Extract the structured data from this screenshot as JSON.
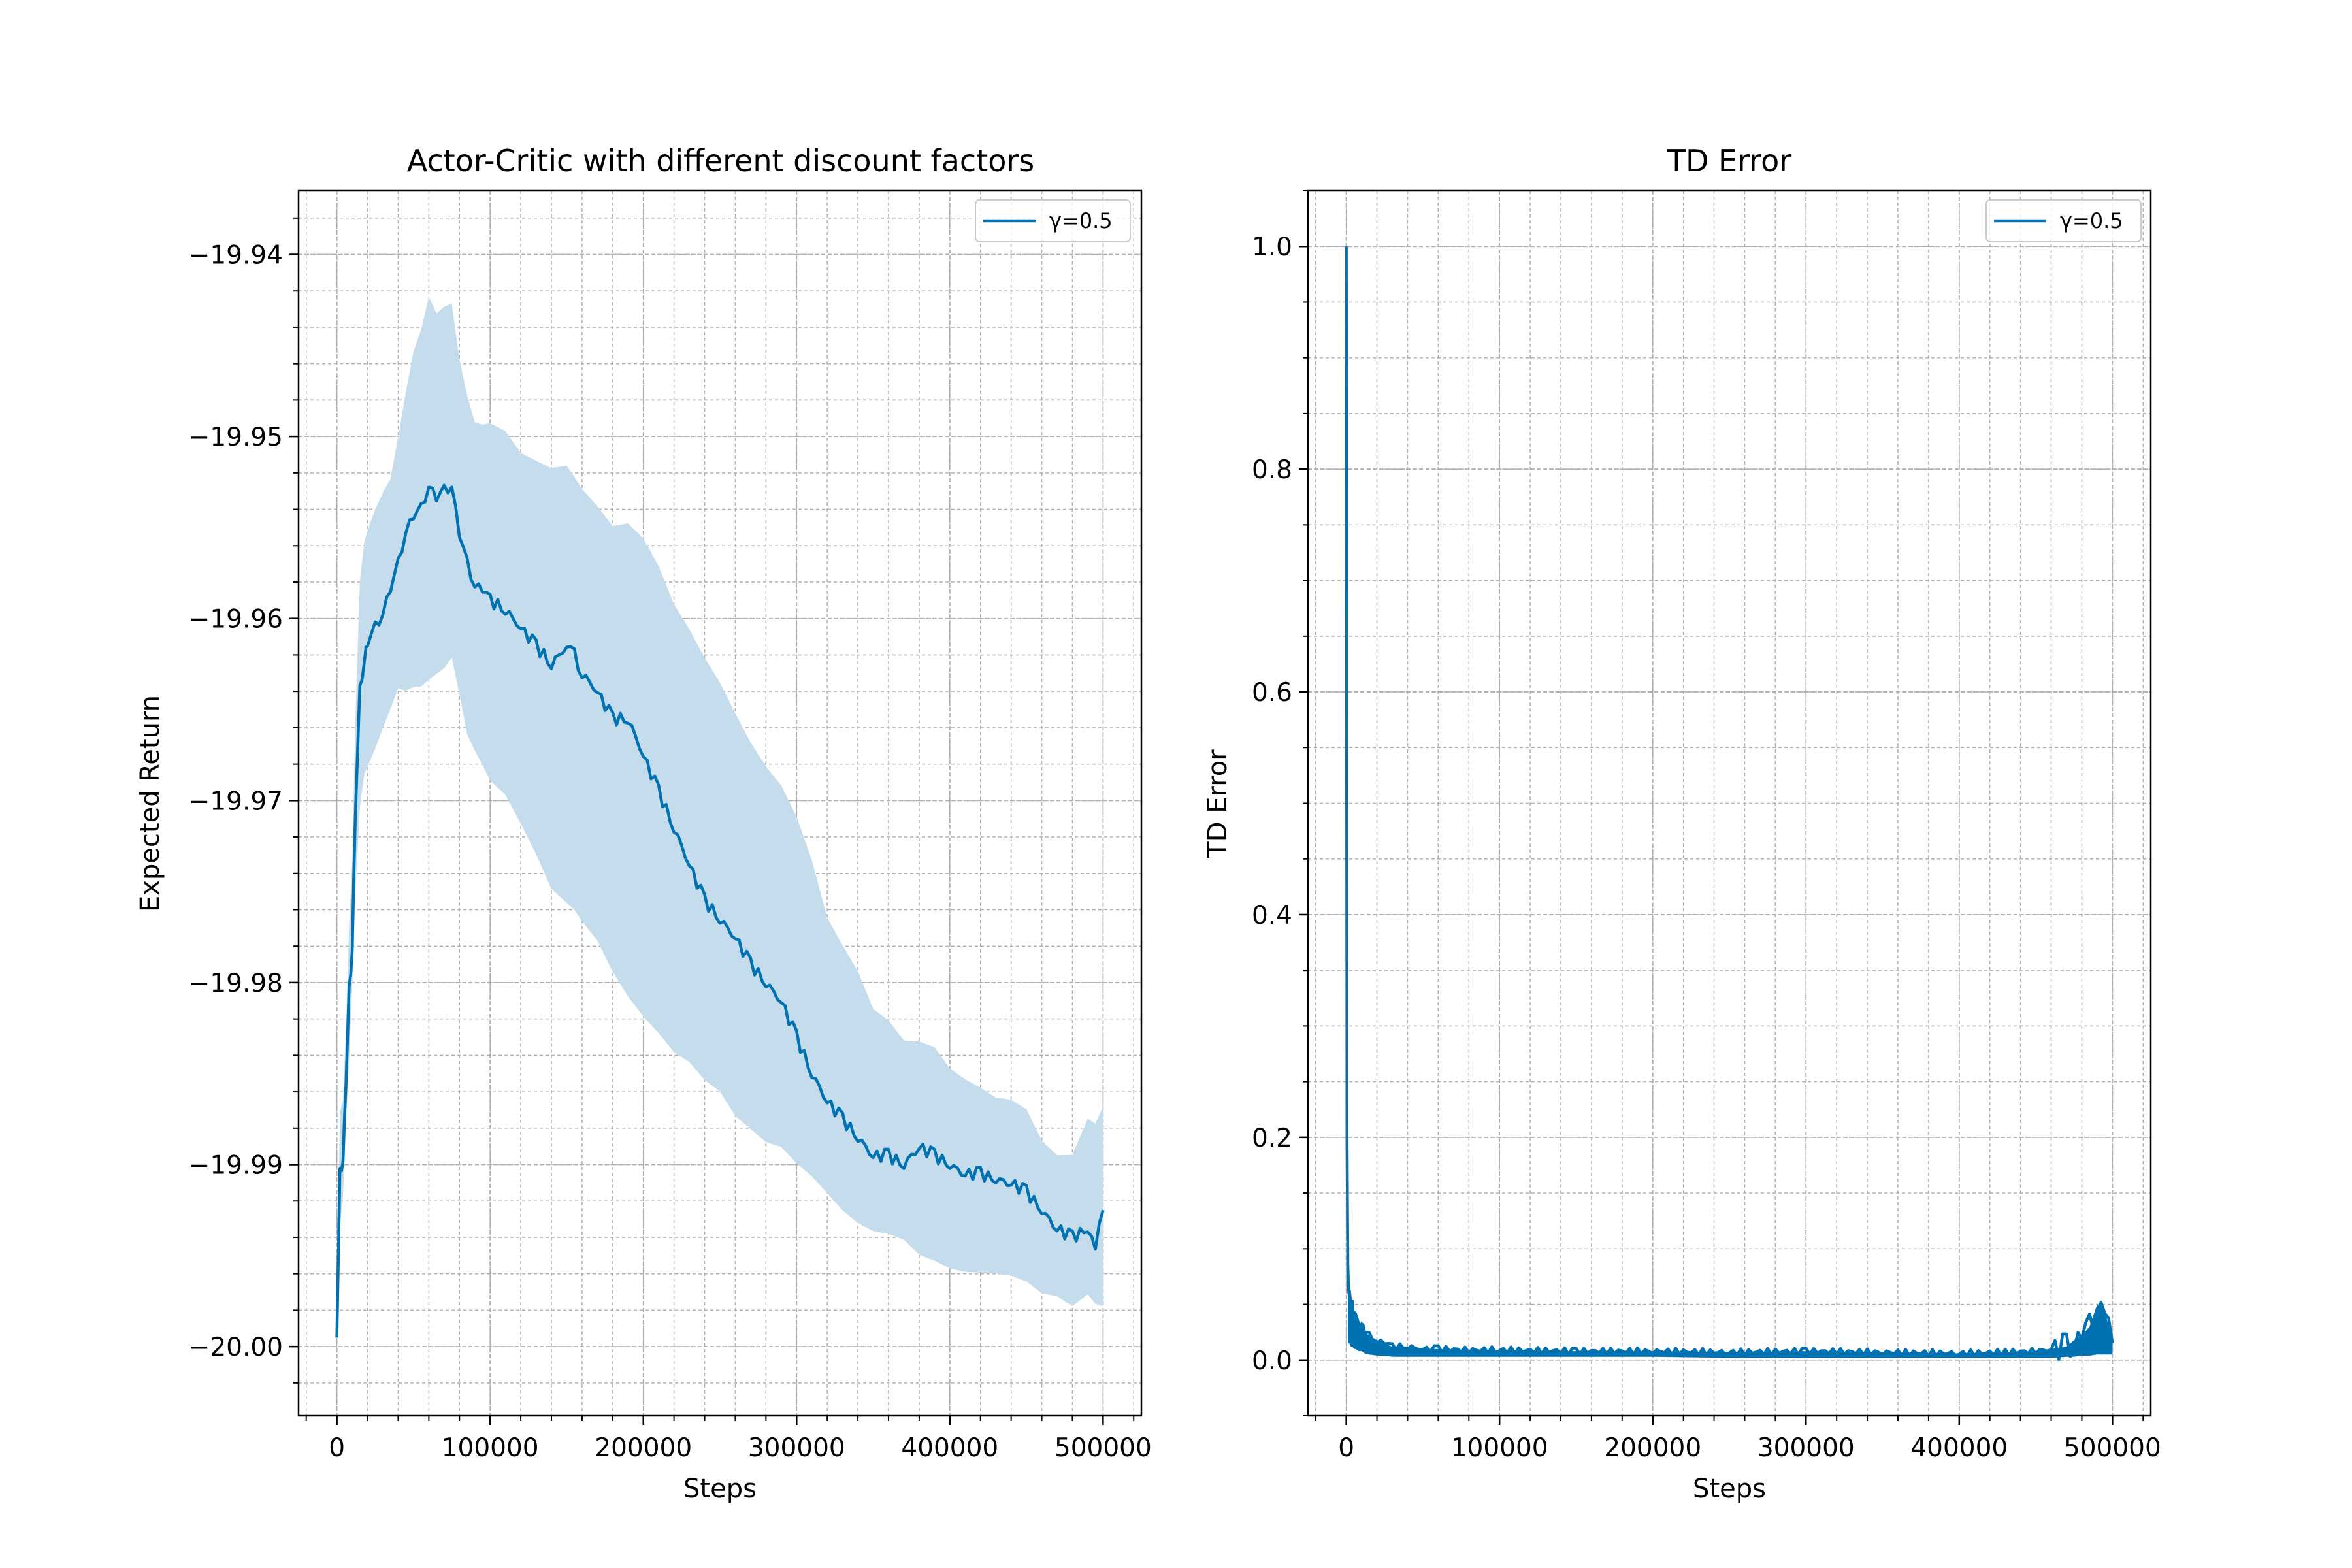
{
  "chart_data": [
    {
      "type": "line",
      "title": "Actor-Critic with different discount factors",
      "xlabel": "Steps",
      "ylabel": "Expected Return",
      "xlim": [
        -25000,
        525000
      ],
      "ylim": [
        -20.0038,
        -19.9365
      ],
      "xticks": [
        0,
        100000,
        200000,
        300000,
        400000,
        500000
      ],
      "xtick_labels": [
        "0",
        "100000",
        "200000",
        "300000",
        "400000",
        "500000"
      ],
      "yticks": [
        -20.0,
        -19.99,
        -19.98,
        -19.97,
        -19.96,
        -19.95,
        -19.94
      ],
      "ytick_labels": [
        "−20.00",
        "−19.99",
        "−19.98",
        "−19.97",
        "−19.96",
        "−19.95",
        "−19.94"
      ],
      "grid": true,
      "legend_position": "top-right",
      "series": [
        {
          "name": "γ=0.5",
          "color": "#0072b2",
          "band_color": "#c5dcec",
          "x": [
            0,
            2000,
            4000,
            6000,
            8000,
            10000,
            12000,
            15000,
            18000,
            20000,
            25000,
            30000,
            35000,
            40000,
            45000,
            50000,
            55000,
            60000,
            65000,
            70000,
            75000,
            80000,
            85000,
            90000,
            95000,
            100000,
            110000,
            120000,
            130000,
            140000,
            150000,
            155000,
            160000,
            170000,
            180000,
            190000,
            200000,
            210000,
            220000,
            230000,
            240000,
            250000,
            260000,
            270000,
            280000,
            290000,
            300000,
            310000,
            320000,
            330000,
            340000,
            350000,
            360000,
            370000,
            380000,
            390000,
            400000,
            410000,
            420000,
            430000,
            440000,
            450000,
            460000,
            470000,
            480000,
            490000,
            495000,
            500000
          ],
          "y": [
            -19.9995,
            -19.9905,
            -19.9895,
            -19.9855,
            -19.9805,
            -19.978,
            -19.971,
            -19.964,
            -19.962,
            -19.9615,
            -19.9605,
            -19.9595,
            -19.9585,
            -19.957,
            -19.955,
            -19.9545,
            -19.954,
            -19.9525,
            -19.9535,
            -19.953,
            -19.9525,
            -19.9555,
            -19.957,
            -19.958,
            -19.9585,
            -19.959,
            -19.9595,
            -19.9605,
            -19.9615,
            -19.9625,
            -19.9615,
            -19.962,
            -19.963,
            -19.964,
            -19.9655,
            -19.9655,
            -19.9675,
            -19.9695,
            -19.9715,
            -19.9735,
            -19.9755,
            -19.9765,
            -19.9775,
            -19.979,
            -19.98,
            -19.981,
            -19.983,
            -19.985,
            -19.9865,
            -19.9875,
            -19.9885,
            -19.9895,
            -19.9895,
            -19.99,
            -19.989,
            -19.9895,
            -19.99,
            -19.9905,
            -19.9905,
            -19.9908,
            -19.991,
            -19.9915,
            -19.9925,
            -19.9935,
            -19.994,
            -19.9935,
            -19.9945,
            -19.9925
          ],
          "lower": [
            -20.0,
            -19.9935,
            -19.9915,
            -19.9875,
            -19.984,
            -19.9805,
            -19.9755,
            -19.9705,
            -19.9685,
            -19.968,
            -19.967,
            -19.966,
            -19.965,
            -19.964,
            -19.964,
            -19.9635,
            -19.9635,
            -19.963,
            -19.963,
            -19.963,
            -19.9625,
            -19.9645,
            -19.966,
            -19.967,
            -19.968,
            -19.969,
            -19.97,
            -19.9715,
            -19.973,
            -19.9745,
            -19.9755,
            -19.976,
            -19.977,
            -19.978,
            -19.9795,
            -19.9805,
            -19.9815,
            -19.9825,
            -19.9835,
            -19.9845,
            -19.9855,
            -19.9862,
            -19.987,
            -19.9878,
            -19.9885,
            -19.9892,
            -19.99,
            -19.9908,
            -19.9915,
            -19.9922,
            -19.993,
            -19.9935,
            -19.994,
            -19.9945,
            -19.995,
            -19.9952,
            -19.9955,
            -19.9958,
            -19.996,
            -19.9962,
            -19.9965,
            -19.9968,
            -19.997,
            -19.9972,
            -19.9975,
            -19.9975,
            -19.9978,
            -19.998
          ],
          "upper": [
            -19.9985,
            -19.9875,
            -19.9865,
            -19.9825,
            -19.977,
            -19.9735,
            -19.966,
            -19.958,
            -19.9555,
            -19.955,
            -19.954,
            -19.953,
            -19.952,
            -19.95,
            -19.9475,
            -19.9455,
            -19.9445,
            -19.9425,
            -19.9435,
            -19.943,
            -19.943,
            -19.946,
            -19.948,
            -19.949,
            -19.949,
            -19.949,
            -19.9495,
            -19.9505,
            -19.951,
            -19.9515,
            -19.952,
            -19.9525,
            -19.953,
            -19.954,
            -19.955,
            -19.955,
            -19.956,
            -19.9575,
            -19.959,
            -19.9605,
            -19.962,
            -19.9635,
            -19.965,
            -19.9665,
            -19.968,
            -19.9695,
            -19.971,
            -19.9735,
            -19.9765,
            -19.978,
            -19.9795,
            -19.9815,
            -19.982,
            -19.983,
            -19.983,
            -19.9835,
            -19.9845,
            -19.985,
            -19.9855,
            -19.986,
            -19.9865,
            -19.987,
            -19.989,
            -19.9895,
            -19.9895,
            -19.9875,
            -19.988,
            -19.9865
          ]
        }
      ]
    },
    {
      "type": "line",
      "title": "TD Error",
      "xlabel": "Steps",
      "ylabel": "TD Error",
      "xlim": [
        -25000,
        525000
      ],
      "ylim": [
        -0.05,
        1.05
      ],
      "xticks": [
        0,
        100000,
        200000,
        300000,
        400000,
        500000
      ],
      "xtick_labels": [
        "0",
        "100000",
        "200000",
        "300000",
        "400000",
        "500000"
      ],
      "yticks": [
        0.0,
        0.2,
        0.4,
        0.6,
        0.8,
        1.0
      ],
      "ytick_labels": [
        "0.0",
        "0.2",
        "0.4",
        "0.6",
        "0.8",
        "1.0"
      ],
      "grid": true,
      "legend_position": "top-right",
      "series": [
        {
          "name": "γ=0.5",
          "color": "#0072b2",
          "x": [
            0,
            200,
            500,
            1000,
            1500,
            2000,
            3000,
            4000,
            5000,
            6000,
            8000,
            10000,
            12000,
            15000,
            20000,
            25000,
            30000,
            40000,
            50000,
            60000,
            80000,
            100000,
            150000,
            200000,
            250000,
            300000,
            350000,
            400000,
            430000,
            450000,
            460000,
            470000,
            475000,
            480000,
            485000,
            490000,
            495000,
            500000
          ],
          "y": [
            1.0,
            0.6,
            0.2,
            0.085,
            0.06,
            0.065,
            0.045,
            0.05,
            0.04,
            0.042,
            0.03,
            0.035,
            0.025,
            0.022,
            0.018,
            0.015,
            0.012,
            0.012,
            0.01,
            0.01,
            0.009,
            0.009,
            0.008,
            0.008,
            0.007,
            0.008,
            0.007,
            0.006,
            0.007,
            0.008,
            0.01,
            0.012,
            0.018,
            0.022,
            0.03,
            0.05,
            0.045,
            0.015
          ],
          "lower": [
            0.0,
            0.0,
            0.0,
            0.02,
            0.015,
            0.015,
            0.012,
            0.012,
            0.01,
            0.01,
            0.008,
            0.008,
            0.006,
            0.005,
            0.004,
            0.004,
            0.003,
            0.003,
            0.003,
            0.003,
            0.003,
            0.003,
            0.003,
            0.003,
            0.002,
            0.002,
            0.002,
            0.002,
            0.002,
            0.002,
            0.002,
            0.003,
            0.003,
            0.004,
            0.004,
            0.005,
            0.005,
            0.005
          ]
        }
      ]
    }
  ]
}
